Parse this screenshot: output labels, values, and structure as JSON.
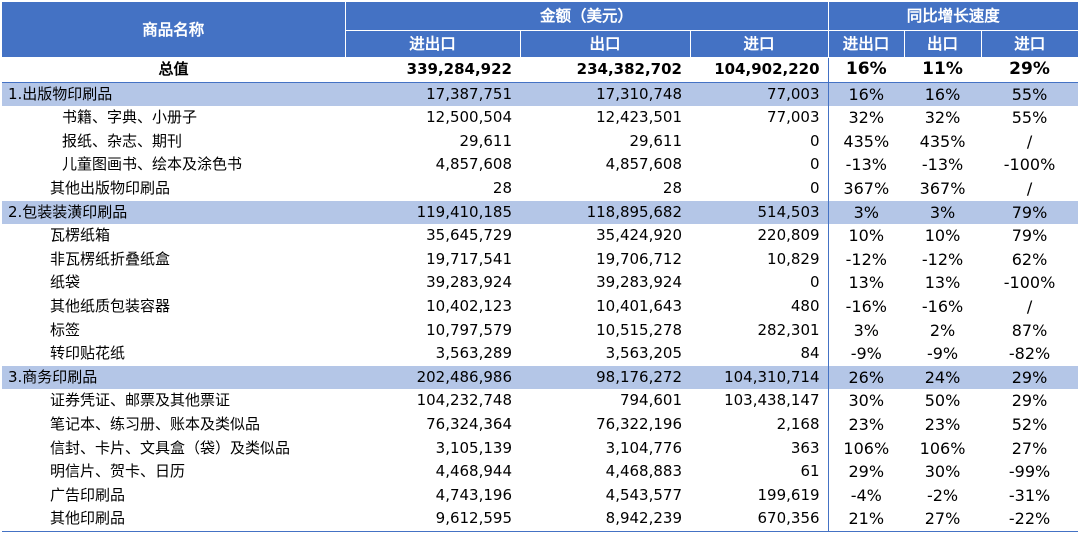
{
  "header": {
    "product_name": "商品名称",
    "amount_group": "金额（美元）",
    "growth_group": "同比增长速度",
    "amount_cols": [
      "进出口",
      "出口",
      "进口"
    ],
    "growth_cols": [
      "进出口",
      "出口",
      "进口"
    ]
  },
  "colors": {
    "header_bg": "#4472c4",
    "category_bg": "#b4c6e7"
  },
  "rows": [
    {
      "type": "total",
      "name": "总值",
      "total": "339,284,922",
      "export": "234,382,702",
      "import": "104,902,220",
      "g_total": "16%",
      "g_export": "11%",
      "g_import": "29%"
    },
    {
      "type": "cat",
      "name": "1.出版物印刷品",
      "total": "17,387,751",
      "export": "17,310,748",
      "import": "77,003",
      "g_total": "16%",
      "g_export": "16%",
      "g_import": "55%"
    },
    {
      "type": "sub",
      "name": "书籍、字典、小册子",
      "total": "12,500,504",
      "export": "12,423,501",
      "import": "77,003",
      "g_total": "32%",
      "g_export": "32%",
      "g_import": "55%"
    },
    {
      "type": "sub",
      "name": "报纸、杂志、期刊",
      "total": "29,611",
      "export": "29,611",
      "import": "0",
      "g_total": "435%",
      "g_export": "435%",
      "g_import": "/"
    },
    {
      "type": "sub",
      "name": "儿童图画书、绘本及涂色书",
      "total": "4,857,608",
      "export": "4,857,608",
      "import": "0",
      "g_total": "-13%",
      "g_export": "-13%",
      "g_import": "-100%"
    },
    {
      "type": "item",
      "name": "其他出版物印刷品",
      "total": "28",
      "export": "28",
      "import": "0",
      "g_total": "367%",
      "g_export": "367%",
      "g_import": "/"
    },
    {
      "type": "cat",
      "name": "2.包装装潢印刷品",
      "total": "119,410,185",
      "export": "118,895,682",
      "import": "514,503",
      "g_total": "3%",
      "g_export": "3%",
      "g_import": "79%"
    },
    {
      "type": "item",
      "name": "瓦楞纸箱",
      "total": "35,645,729",
      "export": "35,424,920",
      "import": "220,809",
      "g_total": "10%",
      "g_export": "10%",
      "g_import": "79%"
    },
    {
      "type": "item",
      "name": "非瓦楞纸折叠纸盒",
      "total": "19,717,541",
      "export": "19,706,712",
      "import": "10,829",
      "g_total": "-12%",
      "g_export": "-12%",
      "g_import": "62%"
    },
    {
      "type": "item",
      "name": "纸袋",
      "total": "39,283,924",
      "export": "39,283,924",
      "import": "0",
      "g_total": "13%",
      "g_export": "13%",
      "g_import": "-100%"
    },
    {
      "type": "item",
      "name": "其他纸质包装容器",
      "total": "10,402,123",
      "export": "10,401,643",
      "import": "480",
      "g_total": "-16%",
      "g_export": "-16%",
      "g_import": "/"
    },
    {
      "type": "item",
      "name": "标签",
      "total": "10,797,579",
      "export": "10,515,278",
      "import": "282,301",
      "g_total": "3%",
      "g_export": "2%",
      "g_import": "87%"
    },
    {
      "type": "item",
      "name": "转印贴花纸",
      "total": "3,563,289",
      "export": "3,563,205",
      "import": "84",
      "g_total": "-9%",
      "g_export": "-9%",
      "g_import": "-82%"
    },
    {
      "type": "cat",
      "name": "3.商务印刷品",
      "total": "202,486,986",
      "export": "98,176,272",
      "import": "104,310,714",
      "g_total": "26%",
      "g_export": "24%",
      "g_import": "29%"
    },
    {
      "type": "item",
      "name": "证券凭证、邮票及其他票证",
      "total": "104,232,748",
      "export": "794,601",
      "import": "103,438,147",
      "g_total": "30%",
      "g_export": "50%",
      "g_import": "29%"
    },
    {
      "type": "item",
      "name": "笔记本、练习册、账本及类似品",
      "total": "76,324,364",
      "export": "76,322,196",
      "import": "2,168",
      "g_total": "23%",
      "g_export": "23%",
      "g_import": "52%"
    },
    {
      "type": "item",
      "name": "信封、卡片、文具盒（袋）及类似品",
      "total": "3,105,139",
      "export": "3,104,776",
      "import": "363",
      "g_total": "106%",
      "g_export": "106%",
      "g_import": "27%"
    },
    {
      "type": "item",
      "name": "明信片、贺卡、日历",
      "total": "4,468,944",
      "export": "4,468,883",
      "import": "61",
      "g_total": "29%",
      "g_export": "30%",
      "g_import": "-99%"
    },
    {
      "type": "item",
      "name": "广告印刷品",
      "total": "4,743,196",
      "export": "4,543,577",
      "import": "199,619",
      "g_total": "-4%",
      "g_export": "-2%",
      "g_import": "-31%"
    },
    {
      "type": "item",
      "name": "其他印刷品",
      "total": "9,612,595",
      "export": "8,942,239",
      "import": "670,356",
      "g_total": "21%",
      "g_export": "27%",
      "g_import": "-22%"
    }
  ]
}
